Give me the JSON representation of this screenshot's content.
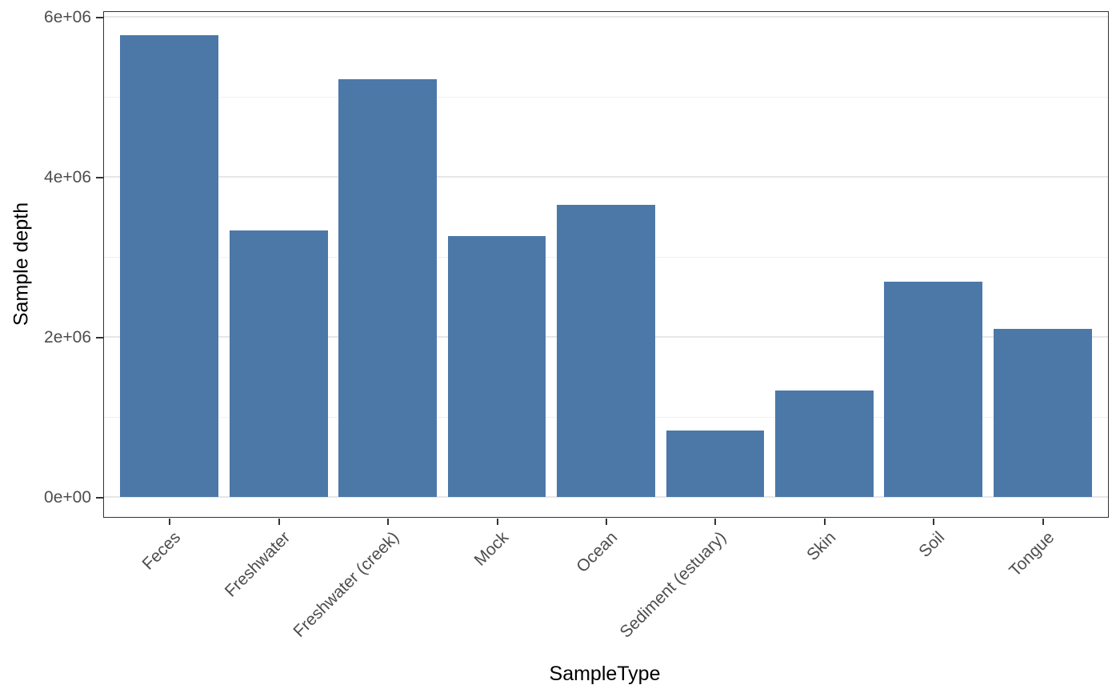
{
  "chart_data": {
    "type": "bar",
    "title": "",
    "xlabel": "SampleType",
    "ylabel": "Sample depth",
    "categories": [
      "Feces",
      "Freshwater",
      "Freshwater (creek)",
      "Mock",
      "Ocean",
      "Sediment (estuary)",
      "Skin",
      "Soil",
      "Tongue"
    ],
    "values": [
      5770000,
      3330000,
      5220000,
      3260000,
      3650000,
      830000,
      1330000,
      2690000,
      2100000
    ],
    "ylim": [
      0,
      6000000
    ],
    "yticks_major": [
      0,
      2000000,
      4000000,
      6000000
    ],
    "ytick_labels": [
      "0e+00",
      "2e+06",
      "4e+06",
      "6e+06"
    ],
    "yticks_minor": [
      1000000,
      3000000,
      5000000
    ],
    "bar_color": "#4c78a8",
    "grid": true,
    "legend_position": "none",
    "panel_border_color": "#333333",
    "axis_text_color": "#4d4d4d",
    "axis_title_color": "#000000",
    "gridline_color": "#e7e7e7",
    "background_color": "#ffffff"
  }
}
